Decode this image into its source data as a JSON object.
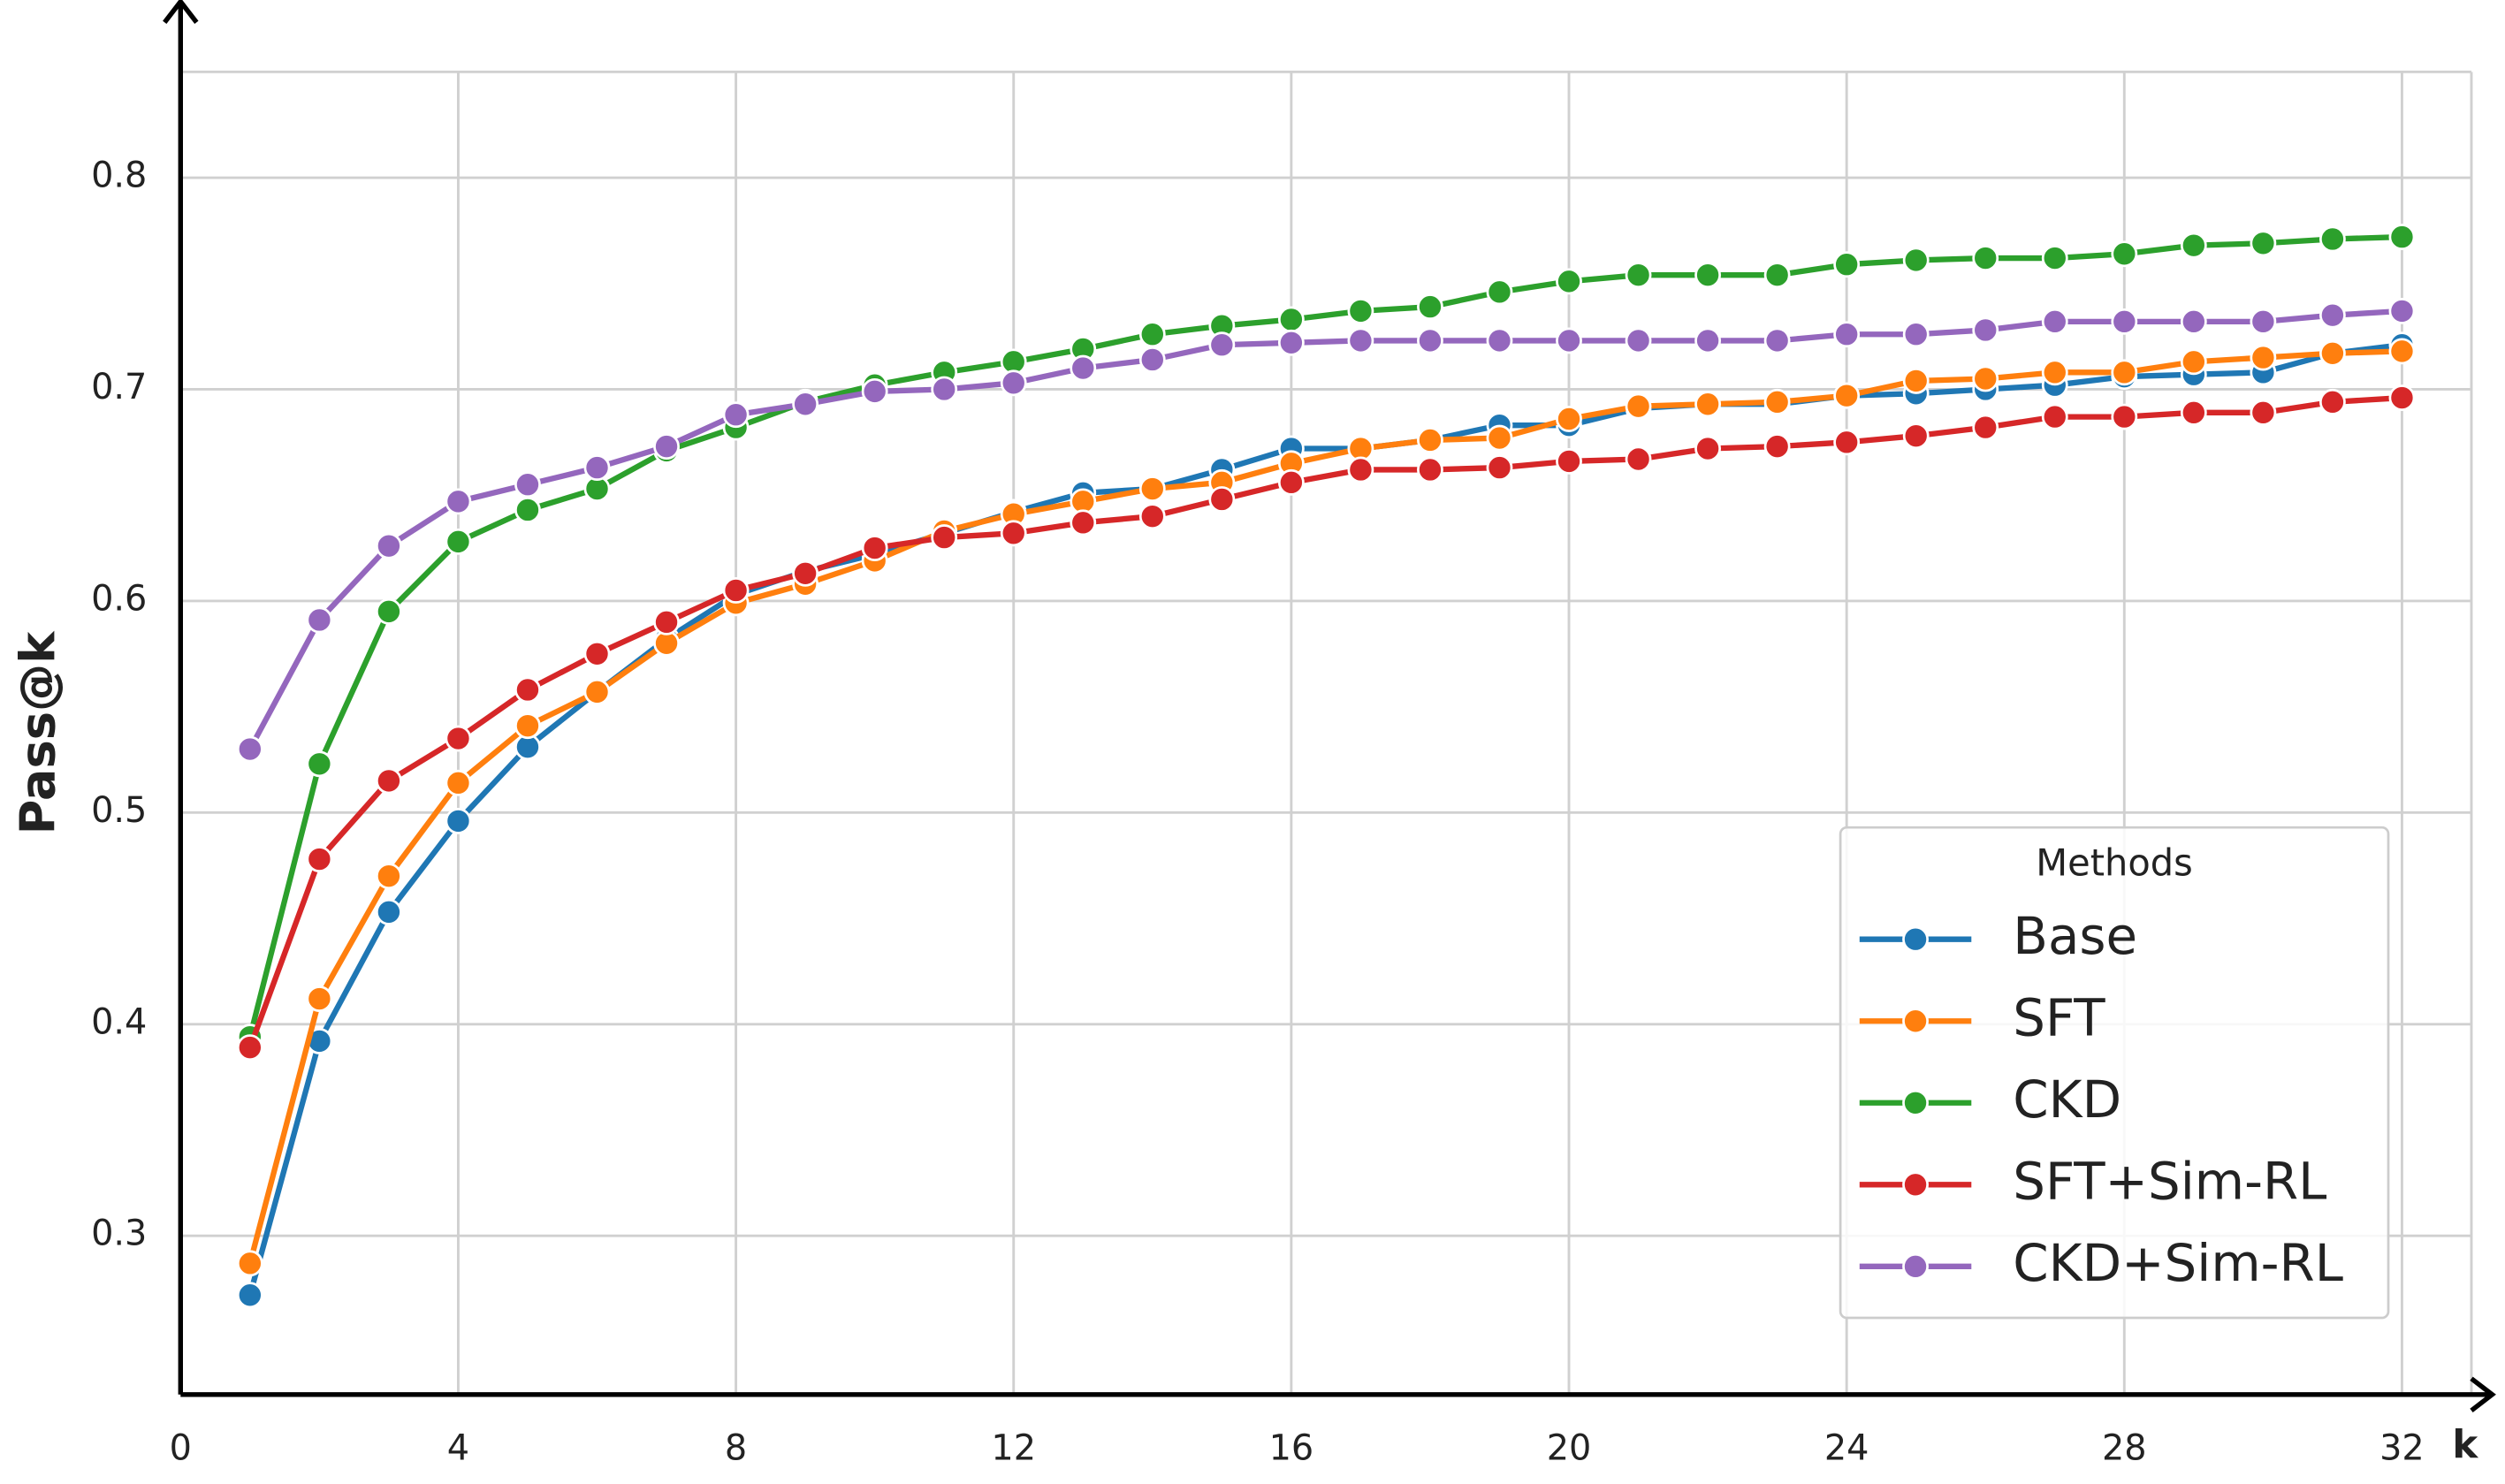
{
  "chart_data": {
    "type": "line",
    "xlabel": "k",
    "ylabel": "Pass@k",
    "x": [
      1,
      2,
      3,
      4,
      5,
      6,
      7,
      8,
      9,
      10,
      11,
      12,
      13,
      14,
      15,
      16,
      17,
      18,
      19,
      20,
      21,
      22,
      23,
      24,
      25,
      26,
      27,
      28,
      29,
      30,
      31,
      32
    ],
    "series": [
      {
        "name": "Base",
        "color": "#1f77b4",
        "values": [
          0.272,
          0.392,
          0.453,
          0.496,
          0.531,
          0.557,
          0.582,
          0.603,
          0.614,
          0.622,
          0.632,
          0.642,
          0.651,
          0.653,
          0.662,
          0.672,
          0.672,
          0.676,
          0.683,
          0.683,
          0.691,
          0.693,
          0.693,
          0.697,
          0.698,
          0.7,
          0.702,
          0.706,
          0.707,
          0.708,
          0.717,
          0.721
        ]
      },
      {
        "name": "SFT",
        "color": "#ff7f0e",
        "values": [
          0.287,
          0.412,
          0.47,
          0.514,
          0.541,
          0.557,
          0.58,
          0.599,
          0.608,
          0.619,
          0.633,
          0.641,
          0.647,
          0.653,
          0.656,
          0.665,
          0.672,
          0.676,
          0.677,
          0.686,
          0.692,
          0.693,
          0.694,
          0.697,
          0.704,
          0.705,
          0.708,
          0.708,
          0.713,
          0.715,
          0.717,
          0.718
        ]
      },
      {
        "name": "CKD",
        "color": "#2ca02c",
        "values": [
          0.394,
          0.523,
          0.595,
          0.628,
          0.643,
          0.653,
          0.671,
          0.682,
          0.694,
          0.702,
          0.708,
          0.713,
          0.719,
          0.726,
          0.73,
          0.733,
          0.737,
          0.739,
          0.746,
          0.751,
          0.754,
          0.754,
          0.754,
          0.759,
          0.761,
          0.762,
          0.762,
          0.764,
          0.768,
          0.769,
          0.771,
          0.772
        ]
      },
      {
        "name": "SFT+Sim-RL",
        "color": "#d62728",
        "values": [
          0.389,
          0.478,
          0.515,
          0.535,
          0.558,
          0.575,
          0.59,
          0.605,
          0.613,
          0.625,
          0.63,
          0.632,
          0.637,
          0.64,
          0.648,
          0.656,
          0.662,
          0.662,
          0.663,
          0.666,
          0.667,
          0.672,
          0.673,
          0.675,
          0.678,
          0.682,
          0.687,
          0.687,
          0.689,
          0.689,
          0.694,
          0.696
        ]
      },
      {
        "name": "CKD+Sim-RL",
        "color": "#9467bd",
        "values": [
          0.53,
          0.591,
          0.626,
          0.647,
          0.655,
          0.663,
          0.673,
          0.688,
          0.693,
          0.699,
          0.7,
          0.703,
          0.71,
          0.714,
          0.721,
          0.722,
          0.723,
          0.723,
          0.723,
          0.723,
          0.723,
          0.723,
          0.723,
          0.726,
          0.726,
          0.728,
          0.732,
          0.732,
          0.732,
          0.732,
          0.735,
          0.737
        ]
      }
    ],
    "legend_title": "Methods",
    "legend": "lower right",
    "xlim": [
      0,
      33
    ],
    "ylim": [
      0.225,
      0.85
    ],
    "xticks": [
      0,
      4,
      8,
      12,
      16,
      20,
      24,
      28,
      32
    ],
    "yticks": [
      0.3,
      0.4,
      0.5,
      0.6,
      0.7,
      0.8
    ],
    "grid": true
  }
}
